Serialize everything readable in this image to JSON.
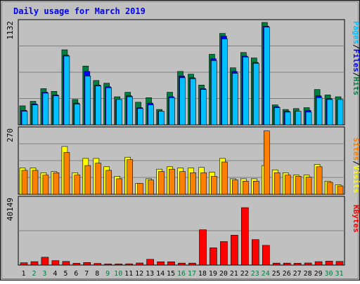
{
  "chart_data": {
    "type": "bar",
    "title": "Daily usage for March 2019",
    "days": [
      "1",
      "2",
      "3",
      "4",
      "5",
      "6",
      "7",
      "8",
      "9",
      "10",
      "11",
      "12",
      "13",
      "14",
      "15",
      "16",
      "17",
      "18",
      "19",
      "20",
      "21",
      "22",
      "23",
      "24",
      "25",
      "26",
      "27",
      "28",
      "29",
      "30",
      "31"
    ],
    "weekend_days": [
      "2",
      "3",
      "9",
      "10",
      "16",
      "17",
      "23",
      "24",
      "30",
      "31"
    ],
    "panels": [
      {
        "name": "hits-files-pages",
        "max_label": "1132",
        "ylim": [
          0,
          1132
        ],
        "legend": [
          {
            "label": "Pages",
            "color": "#00c0ff"
          },
          {
            "label": "/",
            "color": "#000000"
          },
          {
            "label": "Files",
            "color": "#0000ff"
          },
          {
            "label": "/",
            "color": "#000000"
          },
          {
            "label": "Hits",
            "color": "#008040"
          }
        ],
        "series": [
          {
            "name": "Hits",
            "color": "#008040",
            "values": [
              210,
              260,
              400,
              370,
              830,
              280,
              650,
              490,
              460,
              310,
              360,
              250,
              300,
              170,
              360,
              590,
              560,
              440,
              780,
              1010,
              630,
              800,
              740,
              1132,
              220,
              170,
              180,
              190,
              390,
              330,
              310
            ]
          },
          {
            "name": "Files",
            "color": "#0000ff",
            "values": [
              160,
              230,
              360,
              330,
              770,
              240,
              590,
              440,
              420,
              280,
              320,
              190,
              240,
              150,
              310,
              540,
              520,
              400,
              730,
              980,
              590,
              760,
              690,
              1090,
              200,
              150,
              150,
              160,
              320,
              290,
              270
            ]
          },
          {
            "name": "Pages",
            "color": "#00c0ff",
            "values": [
              150,
              220,
              350,
              320,
              760,
              230,
              540,
              430,
              410,
              280,
              310,
              180,
              220,
              150,
              300,
              520,
              510,
              390,
              710,
              950,
              570,
              750,
              680,
              1080,
              190,
              140,
              150,
              140,
              300,
              280,
              280
            ]
          }
        ]
      },
      {
        "name": "visits-sites",
        "max_label": "270",
        "ylim": [
          0,
          270
        ],
        "legend": [
          {
            "label": "Sites",
            "color": "#ff8000"
          },
          {
            "label": "/",
            "color": "#000000"
          },
          {
            "label": "Visits",
            "color": "#ffff00"
          }
        ],
        "series": [
          {
            "name": "Visits",
            "color": "#ffff00",
            "values": [
              110,
              110,
              90,
              95,
              200,
              90,
              150,
              150,
              115,
              75,
              155,
              45,
              65,
              105,
              115,
              110,
              110,
              112,
              92,
              150,
              65,
              65,
              65,
              120,
              102,
              90,
              80,
              80,
              125,
              55,
              40
            ]
          },
          {
            "name": "Sites",
            "color": "#ff8000",
            "values": [
              100,
              100,
              80,
              90,
              175,
              80,
              120,
              130,
              100,
              65,
              145,
              45,
              60,
              95,
              105,
              95,
              90,
              90,
              75,
              135,
              60,
              55,
              55,
              265,
              90,
              80,
              75,
              72,
              115,
              50,
              35
            ]
          }
        ]
      },
      {
        "name": "kbytes",
        "max_label": "40149",
        "ylim": [
          0,
          40149
        ],
        "legend": [
          {
            "label": "KBytes",
            "color": "#ff0000"
          }
        ],
        "series": [
          {
            "name": "KBytes",
            "color": "#ff0000",
            "values": [
              1400,
              2100,
              4800,
              2700,
              2200,
              1100,
              1600,
              1000,
              700,
              700,
              750,
              1300,
              3500,
              2000,
              2000,
              1200,
              1200,
              21500,
              10500,
              14300,
              18200,
              35000,
              15500,
              12000,
              1200,
              1200,
              1100,
              1300,
              2100,
              2400,
              2200
            ]
          }
        ]
      }
    ]
  }
}
